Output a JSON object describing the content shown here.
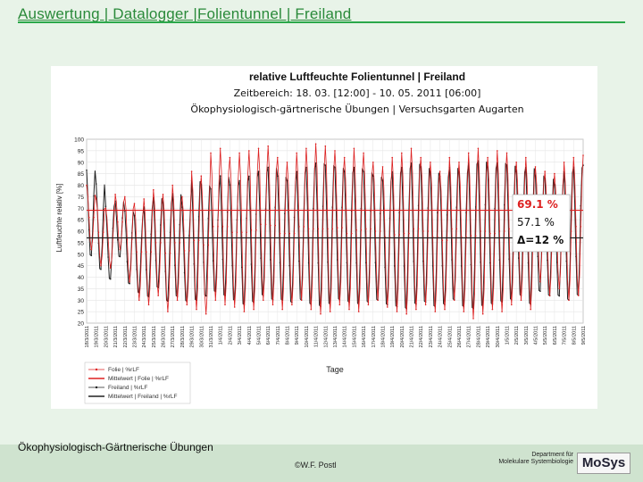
{
  "slide": {
    "title": "Auswertung | Datalogger |Folientunnel | Freiland",
    "footer_left": "Ökophysiologisch-Gärtnerische Übungen",
    "footer_center": "©W.F. Postl",
    "footer_dept_line1": "Department für",
    "footer_dept_line2": "Molekulare Systembiologie",
    "logo_text": "MoSys"
  },
  "chart_data": {
    "type": "line",
    "title": "relative Luftfeuchte Folientunnel | Freiland",
    "subtitle1": "Zeitbereich: 18. 03. [12:00] - 10. 05. 2011 [06:00]",
    "subtitle2": "Ökophysiologisch-gärtnerische Übungen | Versuchsgarten Augarten",
    "ylabel": "Luftfeuchte relativ [%]",
    "xlabel": "Tage",
    "ylim": [
      20,
      100
    ],
    "yticks": [
      20,
      25,
      30,
      35,
      40,
      45,
      50,
      55,
      60,
      65,
      70,
      75,
      80,
      85,
      90,
      95,
      100
    ],
    "x_dates": [
      "18/3/2011",
      "19/3/2011",
      "20/3/2011",
      "21/3/2011",
      "22/3/2011",
      "23/3/2011",
      "24/3/2011",
      "25/3/2011",
      "26/3/2011",
      "27/3/2011",
      "28/3/2011",
      "29/3/2011",
      "30/3/2011",
      "31/3/2011",
      "1/4/2011",
      "2/4/2011",
      "3/4/2011",
      "4/4/2011",
      "5/4/2011",
      "6/4/2011",
      "7/4/2011",
      "8/4/2011",
      "9/4/2011",
      "10/4/2011",
      "11/4/2011",
      "12/4/2011",
      "13/4/2011",
      "14/4/2011",
      "15/4/2011",
      "16/4/2011",
      "17/4/2011",
      "18/4/2011",
      "19/4/2011",
      "20/4/2011",
      "21/4/2011",
      "22/4/2011",
      "23/4/2011",
      "24/4/2011",
      "25/4/2011",
      "26/4/2011",
      "27/4/2011",
      "28/4/2011",
      "29/4/2011",
      "30/4/2011",
      "1/5/2011",
      "2/5/2011",
      "3/5/2011",
      "4/5/2011",
      "5/5/2011",
      "6/5/2011",
      "7/5/2011",
      "8/5/2011",
      "9/5/2011"
    ],
    "series": [
      {
        "name": "Folie | %rLF",
        "color": "#dd2020",
        "daily_min": [
          52,
          45,
          44,
          52,
          38,
          30,
          28,
          32,
          25,
          30,
          28,
          26,
          24,
          30,
          28,
          27,
          25,
          26,
          30,
          28,
          26,
          28,
          30,
          26,
          24,
          25,
          28,
          26,
          25,
          28,
          30,
          27,
          25,
          24,
          26,
          28,
          25,
          26,
          30,
          25,
          22,
          24,
          26,
          25,
          28,
          30,
          26,
          38,
          32,
          35,
          30,
          32,
          25
        ],
        "daily_max": [
          80,
          74,
          70,
          76,
          75,
          72,
          74,
          78,
          76,
          80,
          75,
          86,
          84,
          94,
          96,
          92,
          94,
          95,
          96,
          97,
          92,
          90,
          94,
          96,
          98,
          97,
          95,
          92,
          96,
          94,
          90,
          88,
          92,
          94,
          96,
          92,
          90,
          86,
          92,
          90,
          94,
          96,
          92,
          95,
          94,
          90,
          92,
          88,
          86,
          85,
          90,
          92,
          93
        ]
      },
      {
        "name": "Mittelwert | Folie | %rLF",
        "color": "#dd2020",
        "value": 69.1
      },
      {
        "name": "Freiland | %rLF",
        "color": "#202020",
        "daily_min": [
          48,
          42,
          38,
          48,
          36,
          32,
          30,
          34,
          28,
          30,
          28,
          28,
          30,
          32,
          30,
          28,
          26,
          27,
          30,
          28,
          28,
          27,
          28,
          26,
          25,
          26,
          28,
          27,
          26,
          27,
          28,
          26,
          25,
          24,
          26,
          27,
          25,
          26,
          28,
          25,
          24,
          25,
          26,
          27,
          28,
          30,
          26,
          32,
          30,
          30,
          28,
          30,
          26
        ],
        "daily_max": [
          88,
          82,
          72,
          74,
          70,
          68,
          72,
          76,
          74,
          78,
          72,
          84,
          82,
          80,
          86,
          82,
          84,
          86,
          88,
          90,
          86,
          84,
          88,
          90,
          92,
          91,
          90,
          88,
          90,
          88,
          86,
          84,
          88,
          90,
          92,
          90,
          88,
          86,
          90,
          88,
          92,
          93,
          90,
          92,
          91,
          88,
          90,
          86,
          85,
          82,
          88,
          90,
          91
        ]
      },
      {
        "name": "Mittelwert | Freiland | %rLF",
        "color": "#202020",
        "value": 57.1
      }
    ],
    "annotations": {
      "folie_mean_label": "69.1 %",
      "freiland_mean_label": "57.1 %",
      "delta_label": "Δ=12 %"
    },
    "legend_position": "bottom-left",
    "grid": true
  }
}
